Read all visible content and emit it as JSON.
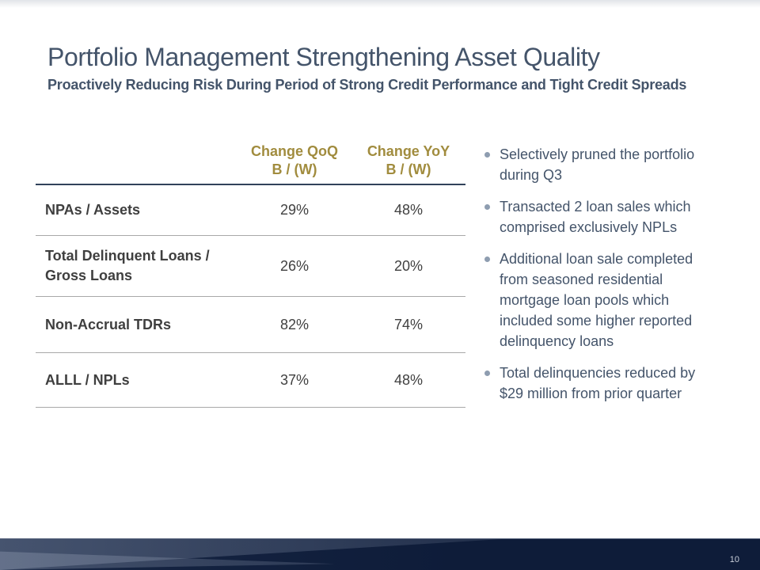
{
  "slide": {
    "title": "Portfolio Management Strengthening Asset Quality",
    "subtitle": "Proactively Reducing Risk During Period of Strong Credit Performance and Tight Credit Spreads",
    "page_number": "10"
  },
  "table": {
    "columns": [
      "Change QoQ\nB / (W)",
      "Change YoY\nB / (W)"
    ],
    "rows": [
      {
        "label": "NPAs / Assets",
        "qoq": "29%",
        "yoy": "48%"
      },
      {
        "label": "Total Delinquent Loans /\nGross Loans",
        "qoq": "26%",
        "yoy": "20%"
      },
      {
        "label": "Non-Accrual TDRs",
        "qoq": "82%",
        "yoy": "74%"
      },
      {
        "label": "ALLL / NPLs",
        "qoq": "37%",
        "yoy": "48%"
      }
    ]
  },
  "bullets": [
    {
      "text": "Selectively pruned the portfolio\nduring Q3"
    },
    {
      "text": "Transacted 2 loan sales which\ncomprised exclusively NPLs"
    },
    {
      "text": "Additional loan sale completed\nfrom seasoned residential\nmortgage loan pools which\nincluded some higher reported\ndelinquency loans"
    },
    {
      "text": "Total delinquencies reduced by\n$29 million from prior quarter"
    }
  ],
  "colors": {
    "title_text": "#44546A",
    "table_header_gold": "#A18C3E",
    "table_label_text": "#3F3F3F",
    "header_rule": "#31425A",
    "row_rule": "#A9A9A9",
    "bullet_dot": "#8E9DB0",
    "bottom_bar_navy": "#0E1C39",
    "page_number_text": "#C9CFDA"
  }
}
